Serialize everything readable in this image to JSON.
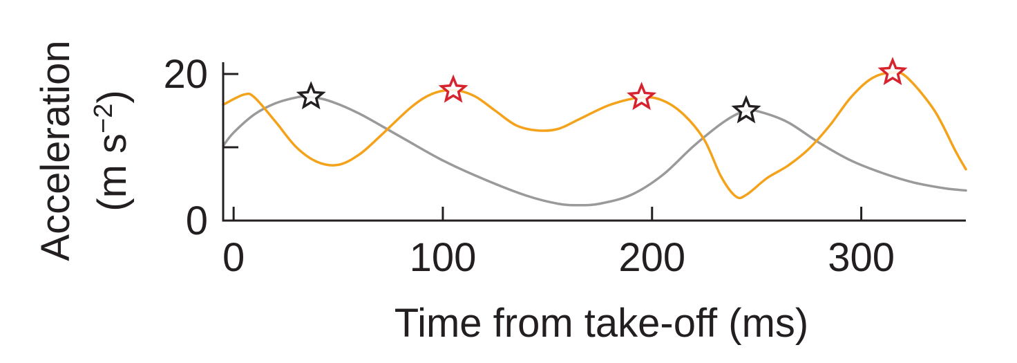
{
  "chart_data": {
    "type": "line",
    "title": "",
    "xlabel": "Time from take-off (ms)",
    "ylabel_line1": "Acceleration",
    "ylabel_line2_main": "(m s",
    "ylabel_line2_sup": "−2",
    "ylabel_line2_end": ")",
    "xlim": [
      -5,
      350
    ],
    "ylim": [
      0,
      20
    ],
    "x_ticks": [
      {
        "value": 0,
        "label": "0"
      },
      {
        "value": 100,
        "label": "100"
      },
      {
        "value": 200,
        "label": "200"
      },
      {
        "value": 300,
        "label": "300"
      }
    ],
    "y_ticks": [
      {
        "value": 0,
        "label": "0"
      },
      {
        "value": 10,
        "label": ""
      },
      {
        "value": 20,
        "label": "20"
      }
    ],
    "grid": false,
    "legend": "none",
    "series": [
      {
        "color": "#9a9a9a",
        "points": [
          [
            -5,
            10.2
          ],
          [
            0,
            12.0
          ],
          [
            10,
            14.5
          ],
          [
            20,
            16.0
          ],
          [
            30,
            16.8
          ],
          [
            35,
            16.9
          ],
          [
            45,
            16.4
          ],
          [
            60,
            14.6
          ],
          [
            80,
            11.4
          ],
          [
            100,
            8.2
          ],
          [
            120,
            5.6
          ],
          [
            140,
            3.4
          ],
          [
            155,
            2.3
          ],
          [
            165,
            2.1
          ],
          [
            175,
            2.3
          ],
          [
            190,
            3.5
          ],
          [
            205,
            6.2
          ],
          [
            220,
            10.2
          ],
          [
            235,
            13.6
          ],
          [
            245,
            15.0
          ],
          [
            252,
            14.8
          ],
          [
            265,
            13.4
          ],
          [
            280,
            10.6
          ],
          [
            295,
            8.2
          ],
          [
            310,
            6.5
          ],
          [
            325,
            5.2
          ],
          [
            340,
            4.4
          ],
          [
            350,
            4.1
          ]
        ]
      },
      {
        "color": "#f5a21b",
        "points": [
          [
            -5,
            15.8
          ],
          [
            5,
            17.2
          ],
          [
            10,
            16.8
          ],
          [
            20,
            13.5
          ],
          [
            30,
            10.0
          ],
          [
            40,
            8.0
          ],
          [
            50,
            7.6
          ],
          [
            60,
            9.0
          ],
          [
            70,
            11.5
          ],
          [
            85,
            15.5
          ],
          [
            95,
            17.3
          ],
          [
            105,
            17.8
          ],
          [
            115,
            17.0
          ],
          [
            125,
            15.0
          ],
          [
            135,
            13.0
          ],
          [
            145,
            12.3
          ],
          [
            155,
            12.5
          ],
          [
            165,
            13.8
          ],
          [
            180,
            15.8
          ],
          [
            195,
            16.8
          ],
          [
            205,
            16.4
          ],
          [
            215,
            14.5
          ],
          [
            225,
            11.0
          ],
          [
            233,
            6.0
          ],
          [
            240,
            3.3
          ],
          [
            245,
            3.5
          ],
          [
            255,
            5.8
          ],
          [
            265,
            7.5
          ],
          [
            275,
            9.8
          ],
          [
            285,
            13.0
          ],
          [
            295,
            16.8
          ],
          [
            305,
            19.4
          ],
          [
            315,
            20.2
          ],
          [
            322,
            19.5
          ],
          [
            335,
            15.0
          ],
          [
            345,
            9.5
          ],
          [
            350,
            7.0
          ]
        ]
      }
    ],
    "markers": [
      {
        "shape": "star",
        "x": 37,
        "y": 16.9,
        "stroke": "#231f20"
      },
      {
        "shape": "star",
        "x": 105,
        "y": 17.8,
        "stroke": "#d7232e"
      },
      {
        "shape": "star",
        "x": 195,
        "y": 16.8,
        "stroke": "#d7232e"
      },
      {
        "shape": "star",
        "x": 245,
        "y": 15.0,
        "stroke": "#231f20"
      },
      {
        "shape": "star",
        "x": 315,
        "y": 20.2,
        "stroke": "#d7232e"
      }
    ]
  }
}
